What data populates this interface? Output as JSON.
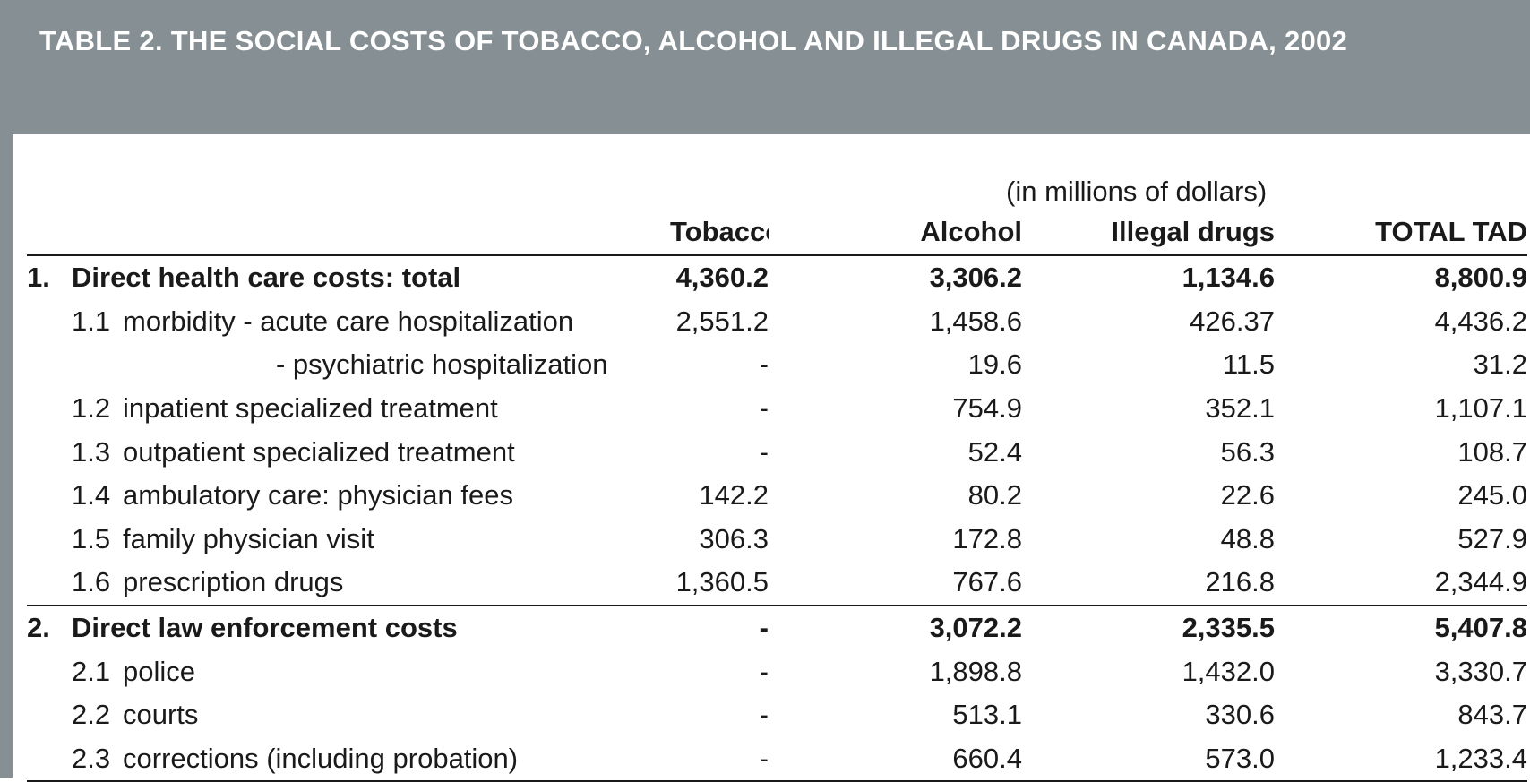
{
  "title": "TABLE 2. THE SOCIAL COSTS OF TOBACCO, ALCOHOL AND ILLEGAL DRUGS IN CANADA, 2002",
  "unit_note": "(in millions of dollars)",
  "columns": [
    "Tobacco",
    "Alcohol",
    "Illegal drugs",
    "TOTAL TAD"
  ],
  "rows": [
    {
      "num": "1.",
      "code": "",
      "label": "Direct health care costs: total",
      "tobacco": "4,360.2",
      "alcohol": "3,306.2",
      "illegal": "1,134.6",
      "total": "8,800.9"
    },
    {
      "num": "",
      "code": "1.1",
      "label": "morbidity - acute care hospitalization",
      "tobacco": "2,551.2",
      "alcohol": "1,458.6",
      "illegal": "426.37",
      "total": "4,436.2"
    },
    {
      "num": "",
      "code": "",
      "label": "- psychiatric hospitalization",
      "tobacco": "-",
      "alcohol": "19.6",
      "illegal": "11.5",
      "total": "31.2"
    },
    {
      "num": "",
      "code": "1.2",
      "label": "inpatient specialized treatment",
      "tobacco": "-",
      "alcohol": "754.9",
      "illegal": "352.1",
      "total": "1,107.1"
    },
    {
      "num": "",
      "code": "1.3",
      "label": "outpatient specialized treatment",
      "tobacco": "-",
      "alcohol": "52.4",
      "illegal": "56.3",
      "total": "108.7"
    },
    {
      "num": "",
      "code": "1.4",
      "label": "ambulatory care: physician fees",
      "tobacco": "142.2",
      "alcohol": "80.2",
      "illegal": "22.6",
      "total": "245.0"
    },
    {
      "num": "",
      "code": "1.5",
      "label": "family physician visit",
      "tobacco": "306.3",
      "alcohol": "172.8",
      "illegal": "48.8",
      "total": "527.9"
    },
    {
      "num": "",
      "code": "1.6",
      "label": "prescription drugs",
      "tobacco": "1,360.5",
      "alcohol": "767.6",
      "illegal": "216.8",
      "total": "2,344.9"
    },
    {
      "num": "2.",
      "code": "",
      "label": "Direct law enforcement costs",
      "tobacco": "-",
      "alcohol": "3,072.2",
      "illegal": "2,335.5",
      "total": "5,407.8"
    },
    {
      "num": "",
      "code": "2.1",
      "label": "police",
      "tobacco": "-",
      "alcohol": "1,898.8",
      "illegal": "1,432.0",
      "total": "3,330.7"
    },
    {
      "num": "",
      "code": "2.2",
      "label": "courts",
      "tobacco": "-",
      "alcohol": "513.1",
      "illegal": "330.6",
      "total": "843.7"
    },
    {
      "num": "",
      "code": "2.3",
      "label": "corrections (including probation)",
      "tobacco": "-",
      "alcohol": "660.4",
      "illegal": "573.0",
      "total": "1,233.4"
    }
  ]
}
